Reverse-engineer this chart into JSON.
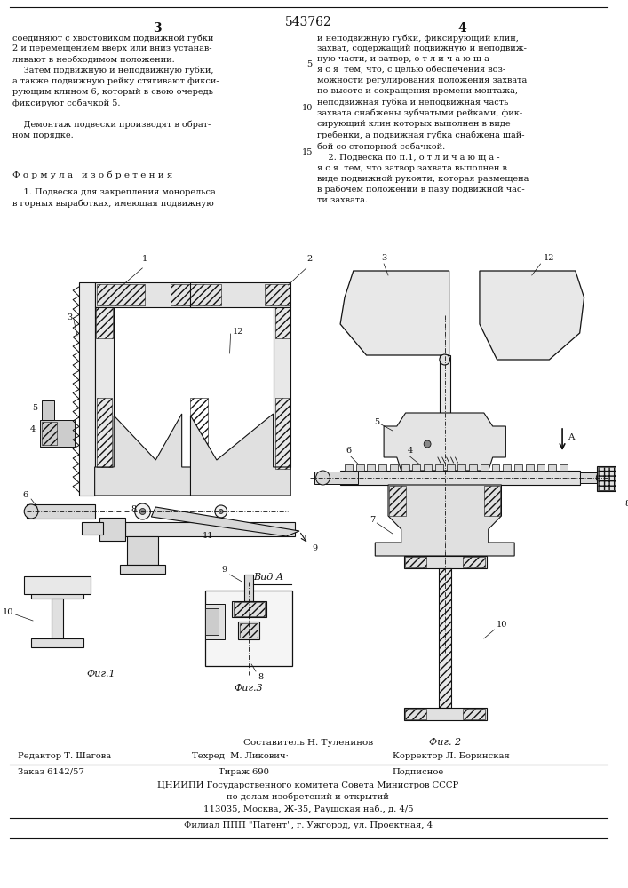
{
  "title_number": "543762",
  "col_left_number": "3",
  "col_right_number": "4",
  "text_left_col1": "соединяют с хвостовиком подвижной губки\n2 и перемещением вверх или вниз устанав-\nливают в необходимом положении.\n    Затем подвижную и неподвижную губки,\nа также подвижную рейку стягивают фикси-\nрующим клином 6, который в свою очередь\nфиксируют собачкой 5.\n\n    Демонтаж подвески производят в обрат-\nном порядке.",
  "formula_header": "Ф о р м у л а   и з о б р е т е н и я",
  "formula_text": "    1. Подвеска для закрепления монорельса\nв горных выработках, имеющая подвижную",
  "text_right_col": "и неподвижную губки, фиксирующий клин,\nзахват, содержащий подвижную и неподвиж-\nную части, и затвор, о т л и ч а ю щ а -\nя с я  тем, что, с целью обеспечения воз-\nможности регулирования положения захвата\nпо высоте и сокращения времени монтажа,\nнеподвижная губка и неподвижная часть\nзахвата снабжены зубчатыми рейками, фик-\nсирующий клин которых выполнен в виде\nгребенки, а подвижная губка снабжена шай-\nбой со стопорной собачкой.\n    2. Подвеска по п.1, о т л и ч а ю щ а -\nя с я  тем, что затвор захвата выполнен в\nвиде подвижной рукояти, которая размещена\nв рабочем положении в пазу подвижной час-\nти захвата.",
  "footer_composer": "Составитель Н. Туленинов",
  "footer_editor": "Редактор Т. Шагова",
  "footer_tech": "Техред  М. Ликович·",
  "footer_corrector": "Корректор Л. Боринская",
  "footer_order": "Заказ 6142/57",
  "footer_circulation": "Тираж 690",
  "footer_subscription": "Подписное",
  "footer_organization": "ЦНИИПИ Государственного комитета Совета Министров СССР",
  "footer_org2": "по делам изобретений и открытий",
  "footer_address": "113035, Москва, Ж-35, Раушская наб., д. 4/5",
  "footer_branch": "Филиал ППП \"Патент\", г. Ужгород, ул. Проектная, 4",
  "fig1_label": "Фиг.1",
  "fig2_label": "Фиг. 2",
  "fig3_label": "Фиг.3",
  "vida_label": "Вид А",
  "bg_color": "#ffffff",
  "text_color": "#111111",
  "line_color": "#111111"
}
